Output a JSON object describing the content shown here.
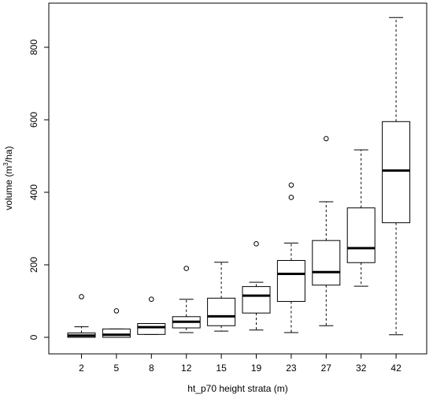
{
  "chart_data": {
    "type": "boxplot",
    "title": "",
    "xlabel": "ht_p70 height strata (m)",
    "ylabel_prefix": "volume  (m",
    "ylabel_sup": "3",
    "ylabel_suffix": "/ha)",
    "ylim": [
      0,
      900
    ],
    "yticks": [
      0,
      200,
      400,
      600,
      800
    ],
    "grid": false,
    "categories": [
      "2",
      "5",
      "8",
      "12",
      "15",
      "19",
      "23",
      "27",
      "32",
      "42"
    ],
    "boxes": [
      {
        "category": "2",
        "whisker_low": 0,
        "q1": 0,
        "median": 5,
        "q3": 12,
        "whisker_high": 29,
        "outliers": [
          112
        ]
      },
      {
        "category": "5",
        "whisker_low": 0,
        "q1": 0,
        "median": 7,
        "q3": 23,
        "whisker_high": 23,
        "outliers": [
          73
        ]
      },
      {
        "category": "8",
        "whisker_low": 8,
        "q1": 8,
        "median": 28,
        "q3": 38,
        "whisker_high": 38,
        "outliers": [
          105
        ]
      },
      {
        "category": "12",
        "whisker_low": 13,
        "q1": 26,
        "median": 43,
        "q3": 57,
        "whisker_high": 105,
        "outliers": [
          190
        ]
      },
      {
        "category": "15",
        "whisker_low": 17,
        "q1": 32,
        "median": 58,
        "q3": 108,
        "whisker_high": 207,
        "outliers": []
      },
      {
        "category": "19",
        "whisker_low": 20,
        "q1": 67,
        "median": 115,
        "q3": 140,
        "whisker_high": 152,
        "outliers": [
          258
        ]
      },
      {
        "category": "23",
        "whisker_low": 13,
        "q1": 99,
        "median": 175,
        "q3": 212,
        "whisker_high": 260,
        "outliers": [
          386,
          420
        ]
      },
      {
        "category": "27",
        "whisker_low": 32,
        "q1": 144,
        "median": 180,
        "q3": 267,
        "whisker_high": 374,
        "outliers": [
          548
        ]
      },
      {
        "category": "32",
        "whisker_low": 141,
        "q1": 206,
        "median": 246,
        "q3": 357,
        "whisker_high": 517,
        "outliers": []
      },
      {
        "category": "42",
        "whisker_low": 7,
        "q1": 316,
        "median": 460,
        "q3": 595,
        "whisker_high": 882,
        "outliers": []
      }
    ]
  }
}
